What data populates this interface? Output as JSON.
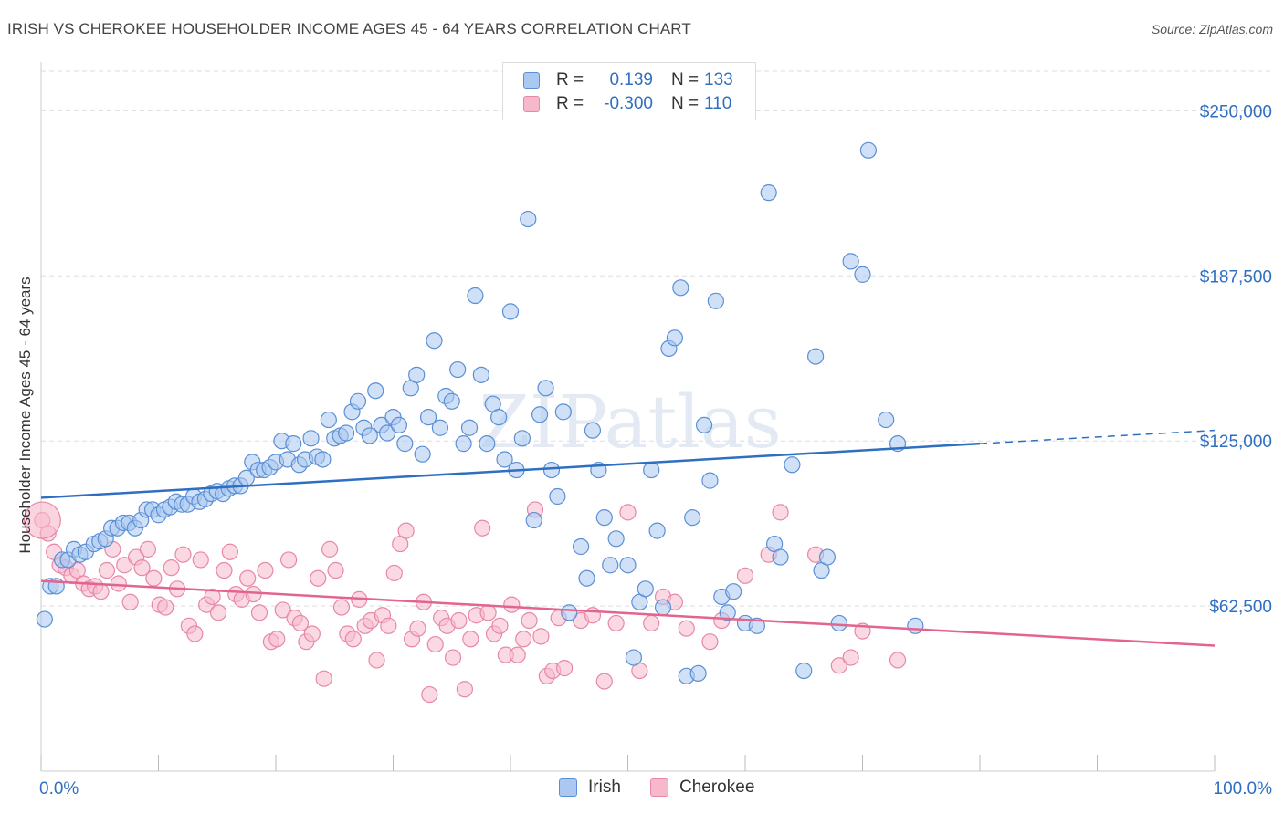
{
  "title": "IRISH VS CHEROKEE HOUSEHOLDER INCOME AGES 45 - 64 YEARS CORRELATION CHART",
  "source": "Source: ZipAtlas.com",
  "watermark": "ZIPatlas",
  "legend": {
    "r_label": "R =",
    "n_label": "N =",
    "irish": {
      "r": "0.139",
      "n": "133"
    },
    "cherokee": {
      "r": "-0.300",
      "n": "110"
    }
  },
  "bottom_legend": {
    "irish": "Irish",
    "cherokee": "Cherokee"
  },
  "colors": {
    "irish_fill": "#aac8f0",
    "irish_stroke": "#5b8fd6",
    "irish_line": "#2f6fc2",
    "cherokee_fill": "#f6b9cc",
    "cherokee_stroke": "#e887a8",
    "cherokee_line": "#e3648f",
    "axis_text": "#2f6fc2",
    "grid": "#dddddd"
  },
  "chart_data": {
    "type": "scatter",
    "title": "IRISH VS CHEROKEE HOUSEHOLDER INCOME AGES 45 - 64 YEARS CORRELATION CHART",
    "xlabel": "",
    "ylabel": "Householder Income Ages 45 - 64 years",
    "xlim": [
      0,
      100
    ],
    "ylim": [
      0,
      265000
    ],
    "x_tick_labels": [
      "0.0%",
      "100.0%"
    ],
    "y_ticks": [
      62500,
      125000,
      187500,
      250000
    ],
    "y_tick_labels": [
      "$62,500",
      "$125,000",
      "$187,500",
      "$250,000"
    ],
    "grid": true,
    "legend_position": "top-center",
    "series": [
      {
        "name": "Irish",
        "trend": {
          "x": [
            0,
            80,
            100
          ],
          "y": [
            103500,
            124000,
            129000
          ],
          "solid_until": 80
        },
        "points": [
          [
            0.3,
            57500
          ],
          [
            0.8,
            70000
          ],
          [
            1.3,
            70000
          ],
          [
            1.8,
            80000
          ],
          [
            2.3,
            80000
          ],
          [
            2.8,
            84000
          ],
          [
            3.3,
            82000
          ],
          [
            3.8,
            83000
          ],
          [
            4.5,
            86000
          ],
          [
            5,
            87000
          ],
          [
            5.5,
            88000
          ],
          [
            6,
            92000
          ],
          [
            6.5,
            92000
          ],
          [
            7,
            94000
          ],
          [
            7.5,
            94000
          ],
          [
            8,
            92000
          ],
          [
            8.5,
            95000
          ],
          [
            9,
            99000
          ],
          [
            9.5,
            99000
          ],
          [
            10,
            97000
          ],
          [
            10.5,
            99000
          ],
          [
            11,
            100000
          ],
          [
            11.5,
            102000
          ],
          [
            12,
            101000
          ],
          [
            12.5,
            101000
          ],
          [
            13,
            104000
          ],
          [
            13.5,
            102000
          ],
          [
            14,
            103000
          ],
          [
            14.5,
            105000
          ],
          [
            15,
            106000
          ],
          [
            15.5,
            105000
          ],
          [
            16,
            107000
          ],
          [
            16.5,
            108000
          ],
          [
            17,
            108000
          ],
          [
            17.5,
            111000
          ],
          [
            18,
            117000
          ],
          [
            18.5,
            114000
          ],
          [
            19,
            114000
          ],
          [
            19.5,
            115000
          ],
          [
            20,
            117000
          ],
          [
            20.5,
            125000
          ],
          [
            21,
            118000
          ],
          [
            21.5,
            124000
          ],
          [
            22,
            116000
          ],
          [
            22.5,
            118000
          ],
          [
            23,
            126000
          ],
          [
            23.5,
            119000
          ],
          [
            24,
            118000
          ],
          [
            24.5,
            133000
          ],
          [
            25,
            126000
          ],
          [
            25.5,
            127000
          ],
          [
            26,
            128000
          ],
          [
            26.5,
            136000
          ],
          [
            27,
            140000
          ],
          [
            27.5,
            130000
          ],
          [
            28,
            127000
          ],
          [
            28.5,
            144000
          ],
          [
            29,
            131000
          ],
          [
            29.5,
            128000
          ],
          [
            30,
            134000
          ],
          [
            30.5,
            131000
          ],
          [
            31,
            124000
          ],
          [
            31.5,
            145000
          ],
          [
            32,
            150000
          ],
          [
            32.5,
            120000
          ],
          [
            33,
            134000
          ],
          [
            33.5,
            163000
          ],
          [
            34,
            130000
          ],
          [
            34.5,
            142000
          ],
          [
            35,
            140000
          ],
          [
            35.5,
            152000
          ],
          [
            36,
            124000
          ],
          [
            36.5,
            130000
          ],
          [
            37,
            180000
          ],
          [
            37.5,
            150000
          ],
          [
            38,
            124000
          ],
          [
            38.5,
            139000
          ],
          [
            39,
            134000
          ],
          [
            39.5,
            118000
          ],
          [
            40,
            174000
          ],
          [
            40.5,
            114000
          ],
          [
            41,
            126000
          ],
          [
            41.5,
            209000
          ],
          [
            42,
            95000
          ],
          [
            42.5,
            135000
          ],
          [
            43,
            145000
          ],
          [
            43.5,
            114000
          ],
          [
            44,
            104000
          ],
          [
            44.5,
            136000
          ],
          [
            45,
            60000
          ],
          [
            46,
            85000
          ],
          [
            46.5,
            73000
          ],
          [
            47,
            129000
          ],
          [
            47.5,
            114000
          ],
          [
            48,
            96000
          ],
          [
            48.5,
            78000
          ],
          [
            49,
            88000
          ],
          [
            50,
            78000
          ],
          [
            50.5,
            43000
          ],
          [
            51,
            64000
          ],
          [
            51.5,
            69000
          ],
          [
            52,
            114000
          ],
          [
            52.5,
            91000
          ],
          [
            53,
            62000
          ],
          [
            53.5,
            160000
          ],
          [
            54,
            164000
          ],
          [
            54.5,
            183000
          ],
          [
            55,
            36000
          ],
          [
            55.5,
            96000
          ],
          [
            56,
            37000
          ],
          [
            56.5,
            131000
          ],
          [
            57,
            110000
          ],
          [
            57.5,
            178000
          ],
          [
            58,
            66000
          ],
          [
            58.5,
            60000
          ],
          [
            59,
            68000
          ],
          [
            60,
            56000
          ],
          [
            61,
            55000
          ],
          [
            62,
            219000
          ],
          [
            62.5,
            86000
          ],
          [
            63,
            81000
          ],
          [
            64,
            116000
          ],
          [
            65,
            38000
          ],
          [
            66,
            157000
          ],
          [
            66.5,
            76000
          ],
          [
            67,
            81000
          ],
          [
            68,
            56000
          ],
          [
            69,
            193000
          ],
          [
            70,
            188000
          ],
          [
            70.5,
            235000
          ],
          [
            72,
            133000
          ],
          [
            73,
            124000
          ],
          [
            74.5,
            55000
          ]
        ]
      },
      {
        "name": "Cherokee",
        "trend": {
          "x": [
            0,
            100
          ],
          "y": [
            72000,
            47500
          ]
        },
        "points": [
          [
            0.1,
            95000
          ],
          [
            0.6,
            90000
          ],
          [
            1.1,
            83000
          ],
          [
            1.6,
            78000
          ],
          [
            2.1,
            77000
          ],
          [
            2.6,
            74000
          ],
          [
            3.1,
            76000
          ],
          [
            3.6,
            71000
          ],
          [
            4.1,
            69000
          ],
          [
            4.6,
            70000
          ],
          [
            5.1,
            68000
          ],
          [
            5.6,
            76000
          ],
          [
            6.1,
            84000
          ],
          [
            6.6,
            71000
          ],
          [
            7.1,
            78000
          ],
          [
            7.6,
            64000
          ],
          [
            8.1,
            81000
          ],
          [
            8.6,
            77000
          ],
          [
            9.1,
            84000
          ],
          [
            9.6,
            73000
          ],
          [
            10.1,
            63000
          ],
          [
            10.6,
            62000
          ],
          [
            11.1,
            77000
          ],
          [
            11.6,
            69000
          ],
          [
            12.1,
            82000
          ],
          [
            12.6,
            55000
          ],
          [
            13.1,
            52000
          ],
          [
            13.6,
            80000
          ],
          [
            14.1,
            63000
          ],
          [
            14.6,
            66000
          ],
          [
            15.1,
            60000
          ],
          [
            15.6,
            76000
          ],
          [
            16.1,
            83000
          ],
          [
            16.6,
            67000
          ],
          [
            17.1,
            65000
          ],
          [
            17.6,
            73000
          ],
          [
            18.1,
            67000
          ],
          [
            18.6,
            60000
          ],
          [
            19.1,
            76000
          ],
          [
            19.6,
            49000
          ],
          [
            20.1,
            50000
          ],
          [
            20.6,
            61000
          ],
          [
            21.1,
            80000
          ],
          [
            21.6,
            58000
          ],
          [
            22.1,
            56000
          ],
          [
            22.6,
            49000
          ],
          [
            23.1,
            52000
          ],
          [
            23.6,
            73000
          ],
          [
            24.1,
            35000
          ],
          [
            24.6,
            84000
          ],
          [
            25.1,
            76000
          ],
          [
            25.6,
            62000
          ],
          [
            26.1,
            52000
          ],
          [
            26.6,
            50000
          ],
          [
            27.1,
            65000
          ],
          [
            27.6,
            55000
          ],
          [
            28.1,
            57000
          ],
          [
            28.6,
            42000
          ],
          [
            29.1,
            59000
          ],
          [
            29.6,
            55000
          ],
          [
            30.1,
            75000
          ],
          [
            30.6,
            86000
          ],
          [
            31.1,
            91000
          ],
          [
            31.6,
            50000
          ],
          [
            32.1,
            54000
          ],
          [
            32.6,
            64000
          ],
          [
            33.1,
            29000
          ],
          [
            33.6,
            48000
          ],
          [
            34.1,
            58000
          ],
          [
            34.6,
            55000
          ],
          [
            35.1,
            43000
          ],
          [
            35.6,
            57000
          ],
          [
            36.1,
            31000
          ],
          [
            36.6,
            50000
          ],
          [
            37.1,
            59000
          ],
          [
            37.6,
            92000
          ],
          [
            38.1,
            60000
          ],
          [
            38.6,
            52000
          ],
          [
            39.1,
            55000
          ],
          [
            39.6,
            44000
          ],
          [
            40.1,
            63000
          ],
          [
            40.6,
            44000
          ],
          [
            41.1,
            50000
          ],
          [
            41.6,
            57000
          ],
          [
            42.1,
            99000
          ],
          [
            42.6,
            51000
          ],
          [
            43.1,
            36000
          ],
          [
            43.6,
            38000
          ],
          [
            44.1,
            58000
          ],
          [
            44.6,
            39000
          ],
          [
            46,
            57000
          ],
          [
            47,
            59000
          ],
          [
            48,
            34000
          ],
          [
            49,
            56000
          ],
          [
            50,
            98000
          ],
          [
            51,
            38000
          ],
          [
            52,
            56000
          ],
          [
            53,
            66000
          ],
          [
            54,
            64000
          ],
          [
            55,
            54000
          ],
          [
            57,
            49000
          ],
          [
            58,
            57000
          ],
          [
            60,
            74000
          ],
          [
            62,
            82000
          ],
          [
            63,
            98000
          ],
          [
            66,
            82000
          ],
          [
            68,
            40000
          ],
          [
            69,
            43000
          ],
          [
            70,
            53000
          ],
          [
            73,
            42000
          ]
        ]
      }
    ]
  }
}
